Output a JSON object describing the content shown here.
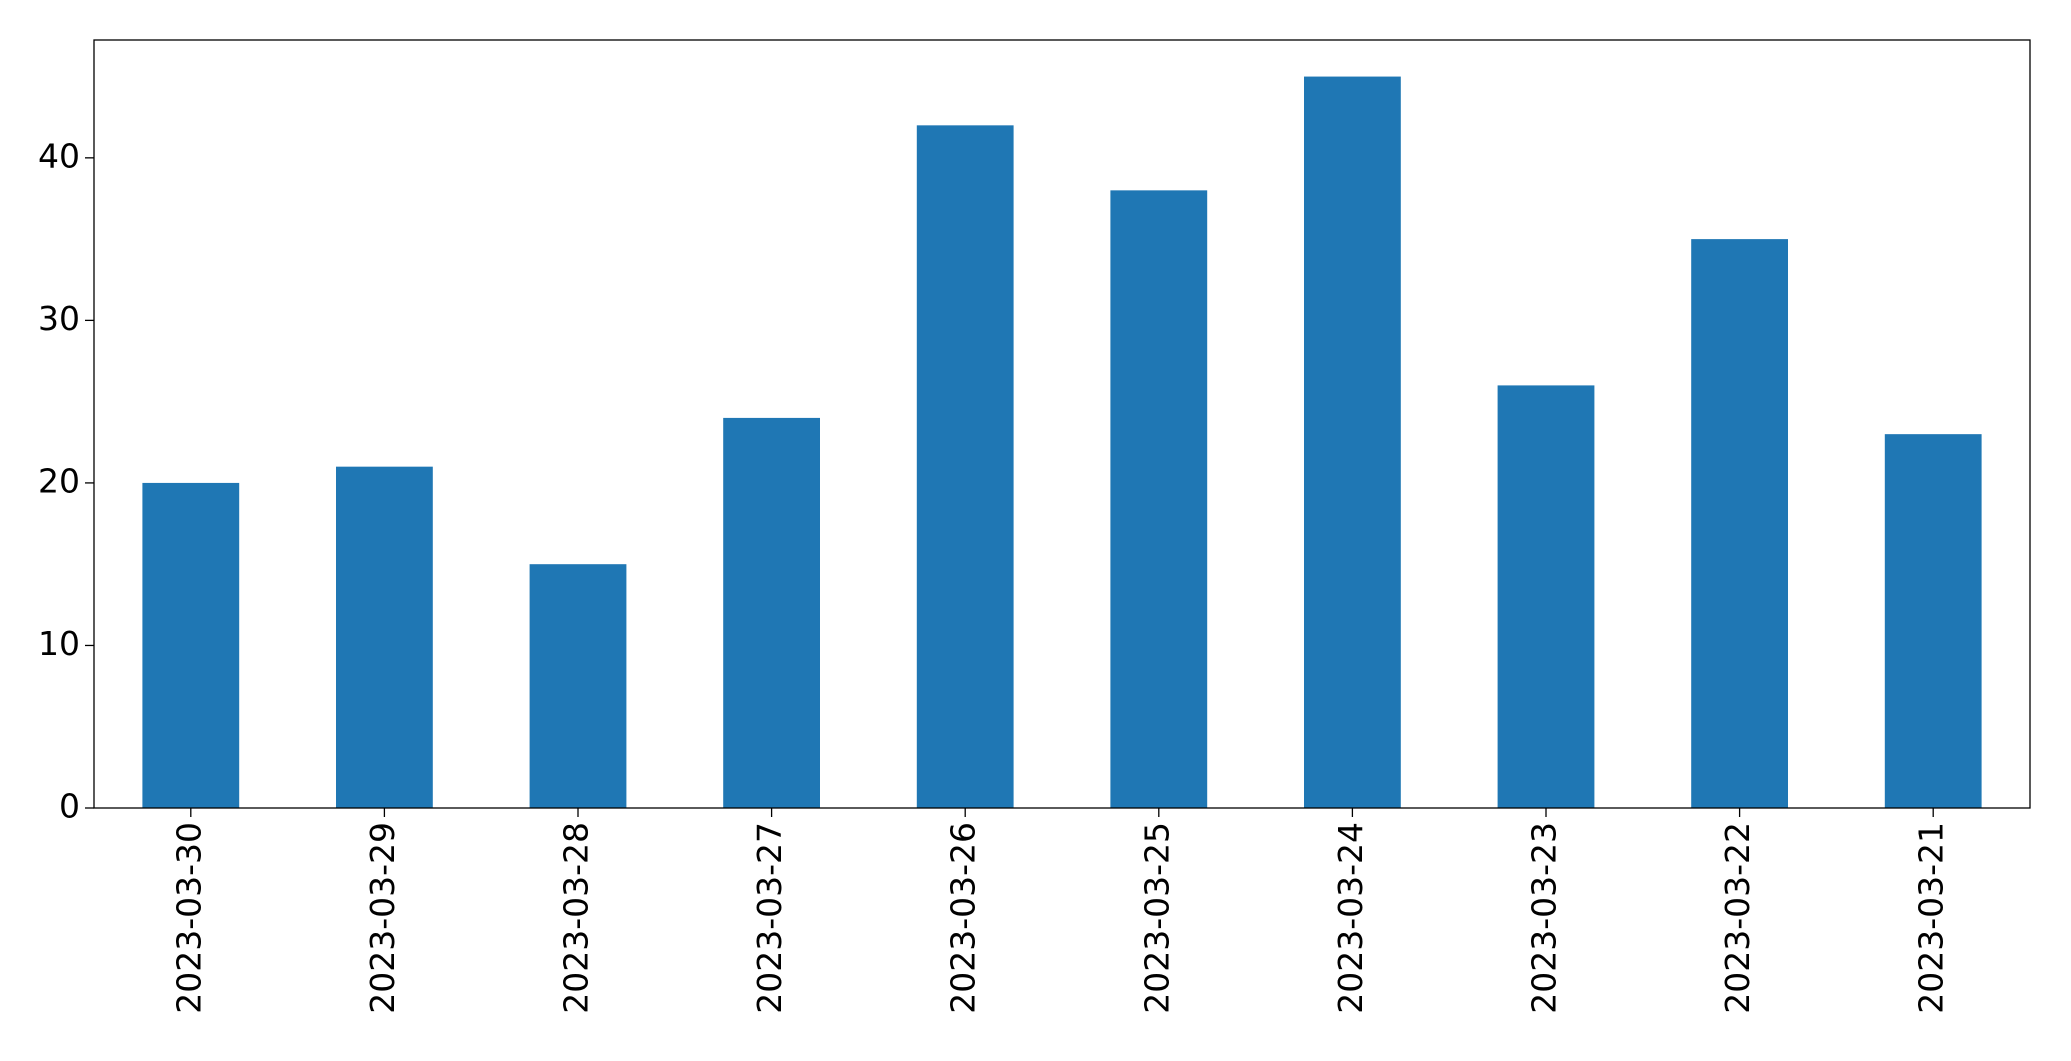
{
  "chart_data": {
    "type": "bar",
    "categories": [
      "2023-03-30",
      "2023-03-29",
      "2023-03-28",
      "2023-03-27",
      "2023-03-26",
      "2023-03-25",
      "2023-03-24",
      "2023-03-23",
      "2023-03-22",
      "2023-03-21"
    ],
    "values": [
      20,
      21,
      15,
      24,
      42,
      38,
      45,
      26,
      35,
      23
    ],
    "color": "#1f77b4",
    "ylim": [
      0,
      47.25
    ],
    "yticks": [
      0,
      10,
      20,
      30,
      40
    ],
    "grid": false
  }
}
